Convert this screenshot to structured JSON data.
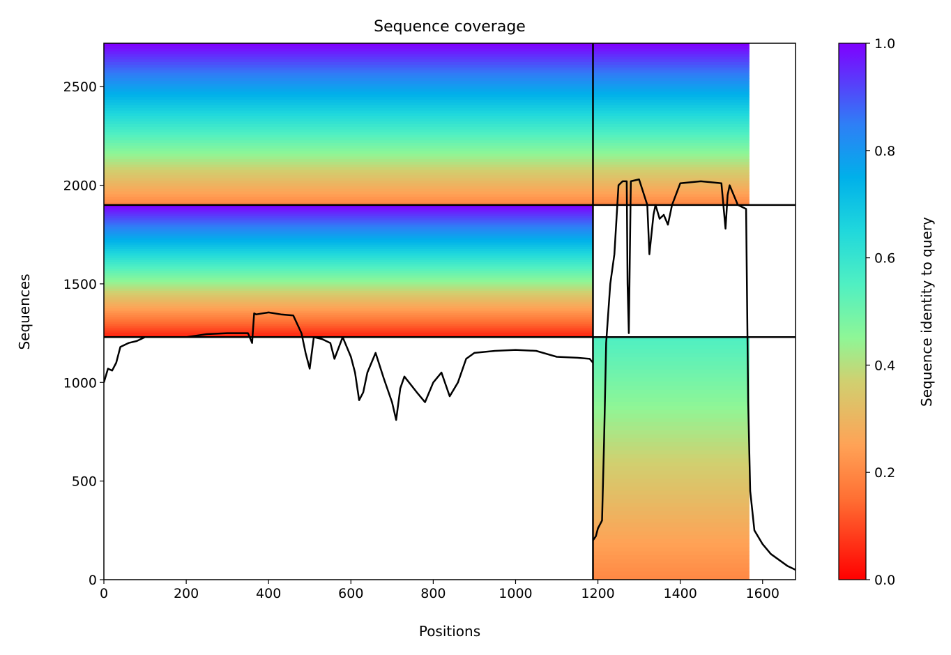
{
  "chart_data": {
    "type": "heatmap",
    "title": "Sequence coverage",
    "xlabel": "Positions",
    "ylabel": "Sequences",
    "xlim": [
      0,
      1680
    ],
    "ylim": [
      0,
      2720
    ],
    "xticks": [
      "0",
      "200",
      "400",
      "600",
      "800",
      "1000",
      "1200",
      "1400",
      "1600"
    ],
    "yticks": [
      "0",
      "500",
      "1000",
      "1500",
      "2000",
      "2500"
    ],
    "colorbar": {
      "label": "Sequence identity to query",
      "range": [
        0.0,
        1.0
      ],
      "ticks": [
        "0.0",
        "0.2",
        "0.4",
        "0.6",
        "0.8",
        "1.0"
      ],
      "colormap": "rainbow"
    },
    "dividers": {
      "x": [
        1188
      ],
      "y": [
        1230,
        1900
      ]
    },
    "blocks": [
      {
        "name": "chain-1-msa",
        "x": [
          0,
          1188
        ],
        "y": [
          1230,
          1900
        ],
        "identity_top": 1.0,
        "identity_bottom": 0.05
      },
      {
        "name": "chain-1-paired-msa",
        "x": [
          0,
          1188
        ],
        "y": [
          1900,
          2720
        ],
        "identity_top": 1.0,
        "identity_bottom": 0.2
      },
      {
        "name": "chain-2-paired-msa",
        "x": [
          1188,
          1568
        ],
        "y": [
          1900,
          2720
        ],
        "identity_top": 1.0,
        "identity_bottom": 0.2
      },
      {
        "name": "chain-2-msa",
        "x": [
          1188,
          1568
        ],
        "y": [
          0,
          1230
        ],
        "identity_top": 0.55,
        "identity_bottom": 0.2
      }
    ],
    "coverage": {
      "chain1_x": [
        0,
        10,
        20,
        30,
        40,
        60,
        80,
        100,
        150,
        200,
        250,
        300,
        350,
        360,
        365,
        370,
        400,
        430,
        460,
        480,
        490,
        500,
        510,
        530,
        550,
        560,
        580,
        600,
        610,
        620,
        630,
        640,
        660,
        680,
        700,
        710,
        720,
        730,
        760,
        780,
        800,
        820,
        840,
        860,
        880,
        900,
        950,
        1000,
        1050,
        1100,
        1150,
        1180,
        1188
      ],
      "chain1_y": [
        1000,
        1070,
        1060,
        1100,
        1180,
        1200,
        1210,
        1230,
        1230,
        1230,
        1245,
        1250,
        1250,
        1200,
        1350,
        1345,
        1355,
        1345,
        1340,
        1250,
        1150,
        1070,
        1230,
        1220,
        1200,
        1120,
        1230,
        1130,
        1050,
        910,
        950,
        1050,
        1150,
        1020,
        900,
        810,
        970,
        1030,
        950,
        900,
        1000,
        1050,
        930,
        1000,
        1120,
        1150,
        1160,
        1165,
        1160,
        1130,
        1125,
        1120,
        1100
      ],
      "chain2_x": [
        1188,
        1195,
        1200,
        1210,
        1215,
        1220,
        1230,
        1240,
        1250,
        1260,
        1270,
        1272,
        1275,
        1280,
        1300,
        1320,
        1325,
        1335,
        1340,
        1350,
        1360,
        1370,
        1380,
        1400,
        1450,
        1500,
        1510,
        1515,
        1520,
        1540,
        1560,
        1565,
        1570,
        1580,
        1600,
        1620,
        1640,
        1660,
        1680
      ],
      "chain2_y": [
        200,
        220,
        260,
        300,
        700,
        1200,
        1500,
        1650,
        2000,
        2020,
        2020,
        1500,
        1250,
        2020,
        2030,
        1900,
        1650,
        1850,
        1900,
        1830,
        1850,
        1800,
        1900,
        2010,
        2020,
        2010,
        1780,
        1950,
        2000,
        1900,
        1880,
        900,
        450,
        250,
        180,
        130,
        100,
        70,
        50
      ]
    }
  }
}
